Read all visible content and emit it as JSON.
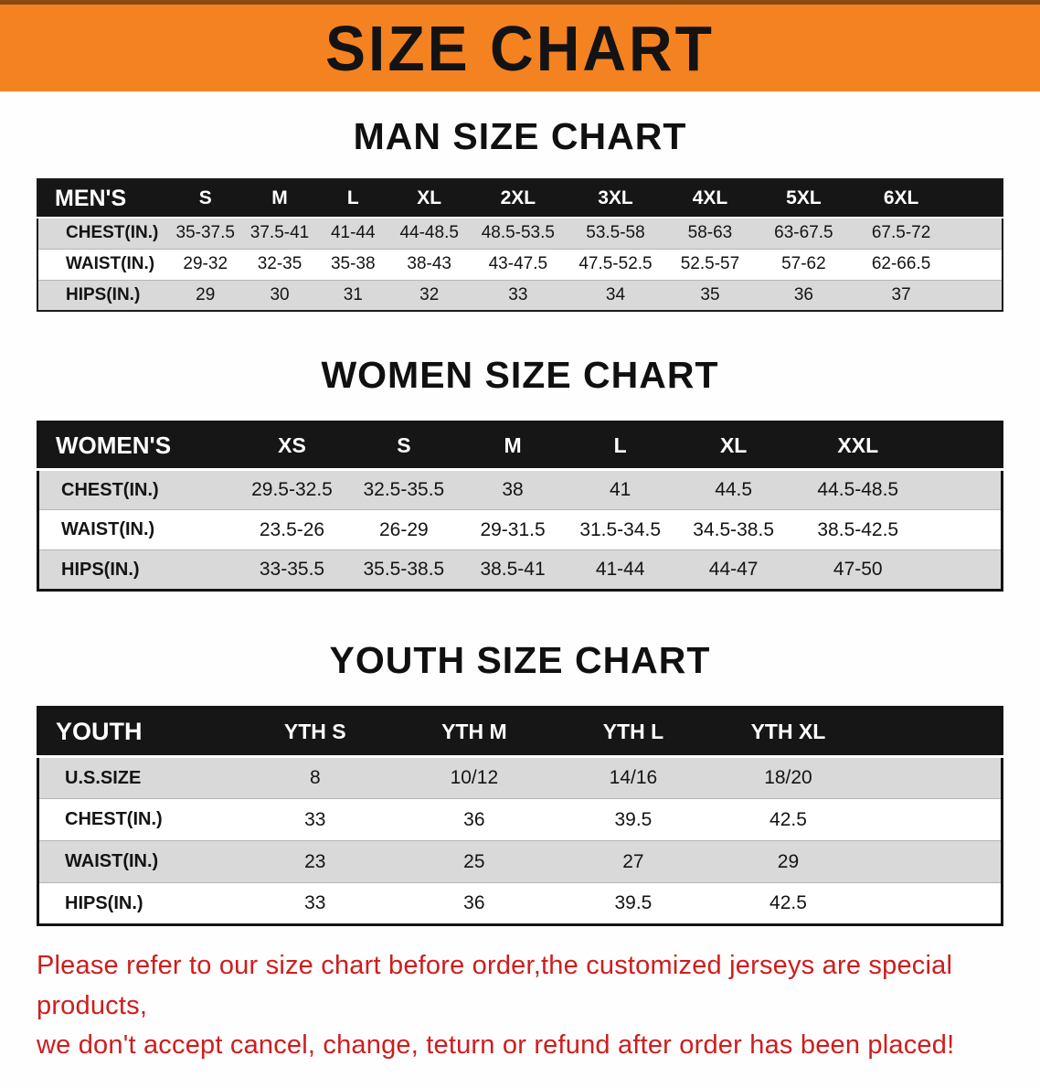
{
  "banner": {
    "title": "SIZE CHART",
    "bg_color": "#f58220",
    "text_color": "#131313"
  },
  "colors": {
    "table_header_bg": "#161616",
    "row_stripe": "#d9d9d9",
    "disclaimer_red": "#cf1d1d"
  },
  "sections": {
    "men": {
      "heading": "MAN SIZE CHART",
      "header": [
        "MEN'S",
        "S",
        "M",
        "L",
        "XL",
        "2XL",
        "3XL",
        "4XL",
        "5XL",
        "6XL"
      ],
      "rows": [
        {
          "label": "CHEST(IN.)",
          "values": [
            "35-37.5",
            "37.5-41",
            "41-44",
            "44-48.5",
            "48.5-53.5",
            "53.5-58",
            "58-63",
            "63-67.5",
            "67.5-72"
          ]
        },
        {
          "label": "WAIST(IN.)",
          "values": [
            "29-32",
            "32-35",
            "35-38",
            "38-43",
            "43-47.5",
            "47.5-52.5",
            "52.5-57",
            "57-62",
            "62-66.5"
          ]
        },
        {
          "label": "HIPS(IN.)",
          "values": [
            "29",
            "30",
            "31",
            "32",
            "33",
            "34",
            "35",
            "36",
            "37"
          ]
        }
      ]
    },
    "women": {
      "heading": "WOMEN SIZE CHART",
      "header": [
        "WOMEN'S",
        "XS",
        "S",
        "M",
        "L",
        "XL",
        "XXL"
      ],
      "rows": [
        {
          "label": "CHEST(IN.)",
          "values": [
            "29.5-32.5",
            "32.5-35.5",
            "38",
            "41",
            "44.5",
            "44.5-48.5"
          ]
        },
        {
          "label": "WAIST(IN.)",
          "values": [
            "23.5-26",
            "26-29",
            "29-31.5",
            "31.5-34.5",
            "34.5-38.5",
            "38.5-42.5"
          ]
        },
        {
          "label": "HIPS(IN.)",
          "values": [
            "33-35.5",
            "35.5-38.5",
            "38.5-41",
            "41-44",
            "44-47",
            "47-50"
          ]
        }
      ]
    },
    "youth": {
      "heading": "YOUTH SIZE CHART",
      "header": [
        "YOUTH",
        "YTH S",
        "YTH M",
        "YTH L",
        "YTH XL"
      ],
      "rows": [
        {
          "label": "U.S.SIZE",
          "values": [
            "8",
            "10/12",
            "14/16",
            "18/20"
          ]
        },
        {
          "label": "CHEST(IN.)",
          "values": [
            "33",
            "36",
            "39.5",
            "42.5"
          ]
        },
        {
          "label": "WAIST(IN.)",
          "values": [
            "23",
            "25",
            "27",
            "29"
          ]
        },
        {
          "label": "HIPS(IN.)",
          "values": [
            "33",
            "36",
            "39.5",
            "42.5"
          ]
        }
      ]
    }
  },
  "footer": {
    "line1": "Please refer to our size chart before order,the customized jerseys are special products,",
    "line2": "we don't accept cancel, change, teturn or refund after order has been placed!"
  }
}
